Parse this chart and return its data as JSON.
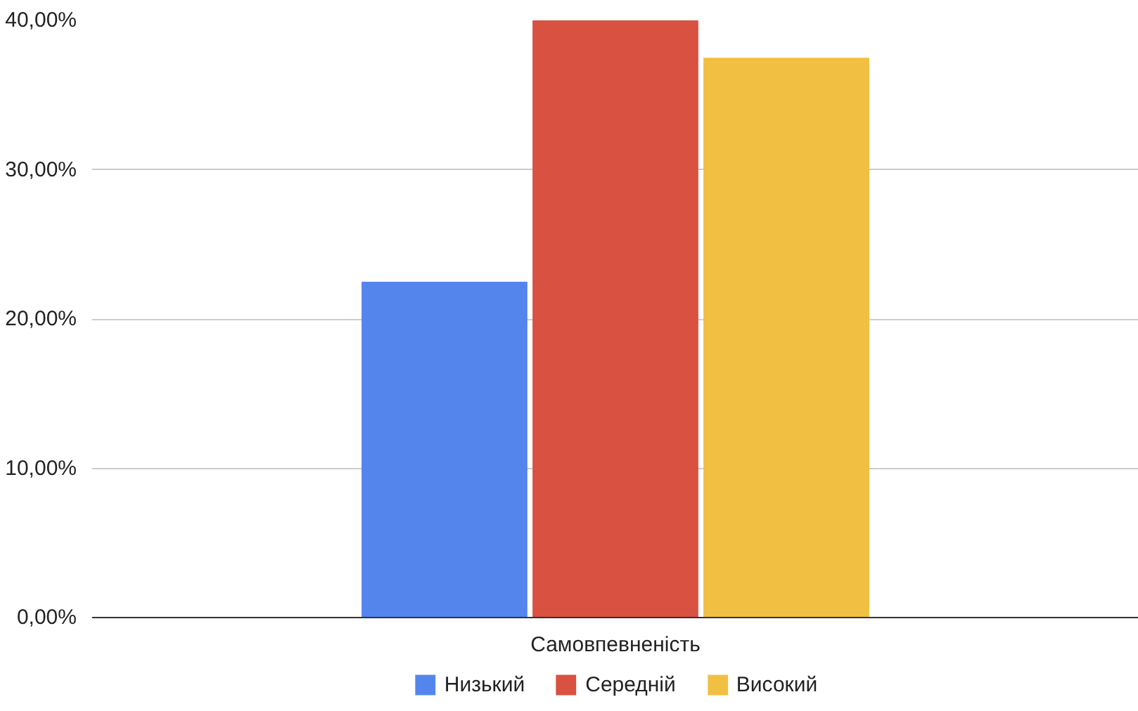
{
  "chart_data": {
    "type": "bar",
    "categories": [
      "Самовпевненість"
    ],
    "series": [
      {
        "name": "Низький",
        "color": "#5485ec",
        "values": [
          22.5
        ]
      },
      {
        "name": "Середній",
        "color": "#d95140",
        "values": [
          40
        ]
      },
      {
        "name": "Високий",
        "color": "#f1bf42",
        "values": [
          37.5
        ]
      }
    ],
    "ylim": [
      0,
      40
    ],
    "yticks": [
      {
        "value": 0,
        "label": "0,00%"
      },
      {
        "value": 10,
        "label": "10,00%"
      },
      {
        "value": 20,
        "label": "20,00%"
      },
      {
        "value": 30,
        "label": "30,00%"
      },
      {
        "value": 40,
        "label": "40,00%"
      }
    ],
    "grid": "y",
    "legend": "bottom"
  }
}
